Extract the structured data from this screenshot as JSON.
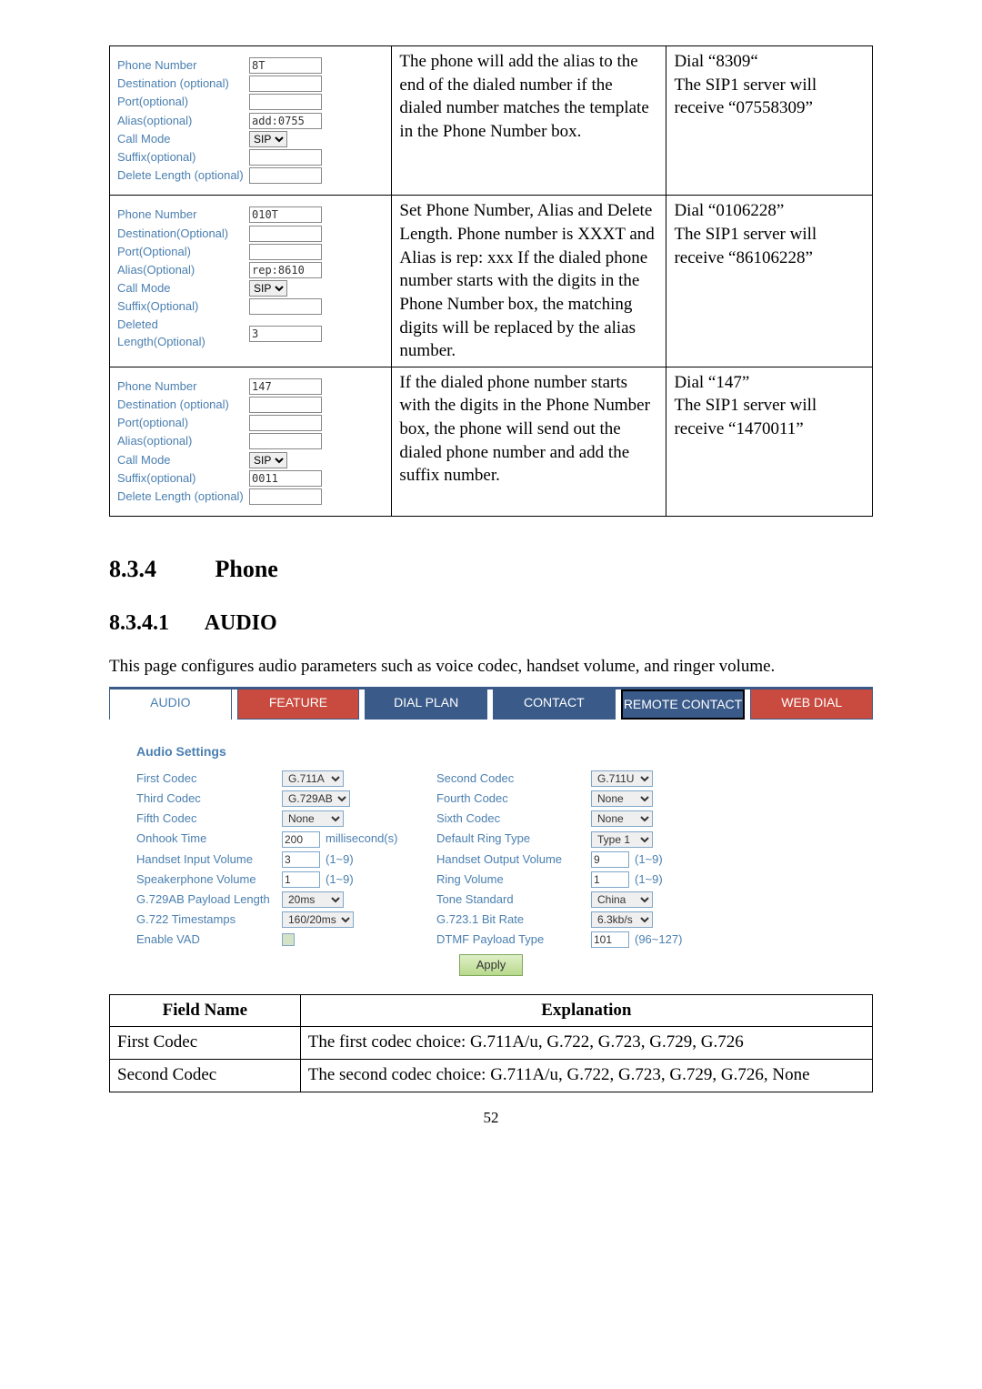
{
  "examples": [
    {
      "form": {
        "rows": [
          {
            "label": "Phone Number",
            "value": "8T",
            "type": "text"
          },
          {
            "label": "Destination (optional)",
            "value": "",
            "type": "text"
          },
          {
            "label": "Port(optional)",
            "value": "",
            "type": "text"
          },
          {
            "label": "Alias(optional)",
            "value": "add:0755",
            "type": "text"
          },
          {
            "label": "Call Mode",
            "value": "SIP",
            "type": "select"
          },
          {
            "label": "Suffix(optional)",
            "value": "",
            "type": "text"
          },
          {
            "label": "Delete Length (optional)",
            "value": "",
            "type": "text"
          }
        ]
      },
      "explanation": "The phone will add the alias to the end of the dialed number if the dialed number matches the template in the Phone Number box.",
      "result": "Dial “8309“\nThe SIP1 server will receive “07558309”"
    },
    {
      "form": {
        "rows": [
          {
            "label": "Phone Number",
            "value": "010T",
            "type": "text"
          },
          {
            "label": "Destination(Optional)",
            "value": "",
            "type": "text"
          },
          {
            "label": "Port(Optional)",
            "value": "",
            "type": "text"
          },
          {
            "label": "Alias(Optional)",
            "value": "rep:8610",
            "type": "text"
          },
          {
            "label": "Call Mode",
            "value": "SIP",
            "type": "select"
          },
          {
            "label": "Suffix(Optional)",
            "value": "",
            "type": "text"
          },
          {
            "label": "Deleted Length(Optional)",
            "value": "3",
            "type": "text"
          }
        ]
      },
      "explanation": "Set Phone Number, Alias and Delete Length. Phone number is XXXT and Alias is rep: xxx If the dialed phone number starts with the digits in the Phone Number box, the matching digits will be replaced by the alias number.",
      "result": "Dial “0106228”\nThe SIP1 server will receive “86106228”"
    },
    {
      "form": {
        "rows": [
          {
            "label": "Phone Number",
            "value": "147",
            "type": "text"
          },
          {
            "label": "Destination (optional)",
            "value": "",
            "type": "text"
          },
          {
            "label": "Port(optional)",
            "value": "",
            "type": "text"
          },
          {
            "label": "Alias(optional)",
            "value": "",
            "type": "text"
          },
          {
            "label": "Call Mode",
            "value": "SIP",
            "type": "select"
          },
          {
            "label": "Suffix(optional)",
            "value": "0011",
            "type": "text"
          },
          {
            "label": "Delete Length (optional)",
            "value": "",
            "type": "text"
          }
        ]
      },
      "explanation": "If the dialed phone number starts with the digits in the Phone Number box, the phone will send out the dialed phone number and add the suffix number.",
      "result": "Dial “147”\nThe SIP1 server will receive “1470011”"
    }
  ],
  "h_section_num": "8.3.4",
  "h_section_title": "Phone",
  "h_sub_num": "8.3.4.1",
  "h_sub_title": "AUDIO",
  "intro": "This page configures audio parameters such as voice codec, handset volume, and ringer volume.",
  "tabs": {
    "items": [
      "AUDIO",
      "FEATURE",
      "DIAL PLAN",
      "CONTACT",
      "REMOTE CONTACT",
      "WEB DIAL"
    ],
    "active_index": 0,
    "colors": {
      "accent": "#3a5a89",
      "alt": "#c94a3f",
      "text_blue": "#4a7fb0"
    }
  },
  "audio_header": "Audio Settings",
  "settings": [
    {
      "l1": "First Codec",
      "v1": {
        "kind": "select",
        "value": "G.711A"
      },
      "l2": "Second Codec",
      "v2": {
        "kind": "select",
        "value": "G.711U"
      }
    },
    {
      "l1": "Third Codec",
      "v1": {
        "kind": "select",
        "value": "G.729AB"
      },
      "l2": "Fourth Codec",
      "v2": {
        "kind": "select",
        "value": "None"
      }
    },
    {
      "l1": "Fifth Codec",
      "v1": {
        "kind": "select",
        "value": "None"
      },
      "l2": "Sixth Codec",
      "v2": {
        "kind": "select",
        "value": "None"
      }
    },
    {
      "l1": "Onhook Time",
      "v1": {
        "kind": "text",
        "value": "200",
        "unit": "millisecond(s)"
      },
      "l2": "Default Ring Type",
      "v2": {
        "kind": "select",
        "value": "Type 1"
      }
    },
    {
      "l1": "Handset Input Volume",
      "v1": {
        "kind": "text",
        "value": "3",
        "unit": "(1~9)"
      },
      "l2": "Handset Output Volume",
      "v2": {
        "kind": "text",
        "value": "9",
        "unit": "(1~9)"
      }
    },
    {
      "l1": "Speakerphone Volume",
      "v1": {
        "kind": "text",
        "value": "1",
        "unit": "(1~9)"
      },
      "l2": "Ring Volume",
      "v2": {
        "kind": "text",
        "value": "1",
        "unit": "(1~9)"
      }
    },
    {
      "l1": "G.729AB Payload Length",
      "v1": {
        "kind": "select",
        "value": "20ms"
      },
      "l2": "Tone Standard",
      "v2": {
        "kind": "select",
        "value": "China"
      }
    },
    {
      "l1": "G.722 Timestamps",
      "v1": {
        "kind": "select",
        "value": "160/20ms"
      },
      "l2": "G.723.1 Bit Rate",
      "v2": {
        "kind": "select",
        "value": "6.3kb/s"
      }
    },
    {
      "l1": "Enable VAD",
      "v1": {
        "kind": "check"
      },
      "l2": "DTMF Payload Type",
      "v2": {
        "kind": "text",
        "value": "101",
        "unit": "(96~127)"
      }
    }
  ],
  "apply_label": "Apply",
  "explain_header": {
    "c1": "Field Name",
    "c2": "Explanation"
  },
  "explain_rows": [
    {
      "name": "First Codec",
      "text": "The first codec choice: G.711A/u, G.722, G.723, G.729, G.726"
    },
    {
      "name": "Second Codec",
      "text": "The second codec choice: G.711A/u, G.722, G.723, G.729, G.726, None"
    }
  ],
  "page_number": "52"
}
